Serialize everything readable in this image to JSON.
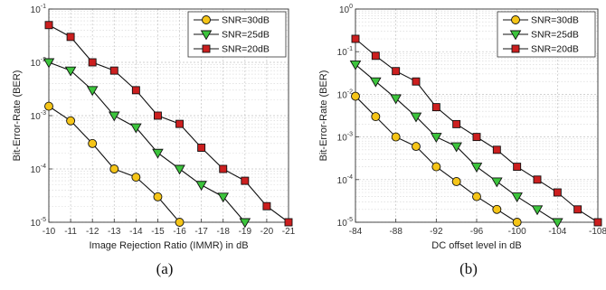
{
  "captions": {
    "a": "(a)",
    "b": "(b)"
  },
  "chart_data": [
    {
      "type": "line",
      "title": "",
      "xlabel": "Image Rejection Ratio (IMMR) in dB",
      "ylabel": "Bit-Error-Rate (BER)",
      "x": [
        -10,
        -11,
        -12,
        -13,
        -14,
        -15,
        -16,
        -17,
        -18,
        -19,
        -20,
        -21
      ],
      "x_ticks": [
        "-10",
        "-11",
        "-12",
        "-13",
        "-14",
        "-15",
        "-16",
        "-17",
        "-18",
        "-19",
        "-20",
        "-21"
      ],
      "xlim": [
        -10,
        -21
      ],
      "ylim": [
        1e-05,
        0.1
      ],
      "yscale": "log",
      "y_ticks": [
        "10-5",
        "10-4",
        "10-3",
        "10-2",
        "10-1"
      ],
      "grid": true,
      "legend_position": "top-right",
      "series": [
        {
          "name": "SNR=30dB",
          "marker": "circle",
          "color": "#f5c518",
          "x": [
            -10,
            -11,
            -12,
            -13,
            -14,
            -15,
            -16
          ],
          "y": [
            0.0015,
            0.0008,
            0.0003,
            0.0001,
            7e-05,
            3e-05,
            1e-05
          ]
        },
        {
          "name": "SNR=25dB",
          "marker": "triangle-down",
          "color": "#3cc43c",
          "x": [
            -10,
            -11,
            -12,
            -13,
            -14,
            -15,
            -16,
            -17,
            -18,
            -19
          ],
          "y": [
            0.01,
            0.007,
            0.003,
            0.001,
            0.0006,
            0.0002,
            0.0001,
            5e-05,
            3e-05,
            1e-05
          ]
        },
        {
          "name": "SNR=20dB",
          "marker": "square",
          "color": "#cc1f1f",
          "x": [
            -10,
            -11,
            -12,
            -13,
            -14,
            -15,
            -16,
            -17,
            -18,
            -19,
            -20,
            -21
          ],
          "y": [
            0.05,
            0.03,
            0.01,
            0.007,
            0.003,
            0.001,
            0.0007,
            0.00025,
            0.0001,
            6e-05,
            2e-05,
            1e-05
          ]
        }
      ]
    },
    {
      "type": "line",
      "title": "",
      "xlabel": "DC offset level in dB",
      "ylabel": "Bit-Error-Rate (BER)",
      "x_ticks": [
        "-84",
        "-88",
        "-92",
        "-96",
        "-100",
        "-104",
        "-108"
      ],
      "x_tick_values": [
        -84,
        -88,
        -92,
        -96,
        -100,
        -104,
        -108
      ],
      "xlim": [
        -84,
        -108
      ],
      "ylim": [
        1e-05,
        1
      ],
      "yscale": "log",
      "y_ticks": [
        "10-5",
        "10-4",
        "10-3",
        "10-2",
        "10-1",
        "100"
      ],
      "grid": true,
      "legend_position": "top-right",
      "series": [
        {
          "name": "SNR=30dB",
          "marker": "circle",
          "color": "#f5c518",
          "x": [
            -84,
            -86,
            -88,
            -90,
            -92,
            -94,
            -96,
            -98,
            -100
          ],
          "y": [
            0.009,
            0.003,
            0.001,
            0.0006,
            0.0002,
            9e-05,
            4e-05,
            2e-05,
            1e-05
          ]
        },
        {
          "name": "SNR=25dB",
          "marker": "triangle-down",
          "color": "#3cc43c",
          "x": [
            -84,
            -86,
            -88,
            -90,
            -92,
            -94,
            -96,
            -98,
            -100,
            -102,
            -104
          ],
          "y": [
            0.05,
            0.02,
            0.008,
            0.003,
            0.001,
            0.0006,
            0.0002,
            9e-05,
            4e-05,
            2e-05,
            1e-05
          ]
        },
        {
          "name": "SNR=20dB",
          "marker": "square",
          "color": "#cc1f1f",
          "x": [
            -84,
            -86,
            -88,
            -90,
            -92,
            -94,
            -96,
            -98,
            -100,
            -102,
            -104,
            -106,
            -108
          ],
          "y": [
            0.2,
            0.08,
            0.035,
            0.02,
            0.005,
            0.002,
            0.001,
            0.0005,
            0.0002,
            0.0001,
            5e-05,
            2e-05,
            1e-05
          ]
        }
      ]
    }
  ]
}
